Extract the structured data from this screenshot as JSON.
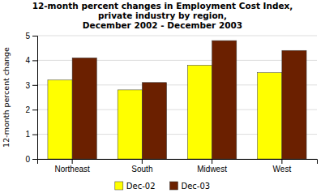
{
  "chart_data": {
    "type": "bar",
    "title": "12-month percent changes in Employment Cost Index,\nprivate industry by region,\nDecember 2002 - December 2003",
    "categories": [
      "Northeast",
      "South",
      "Midwest",
      "West"
    ],
    "series": [
      {
        "name": "Dec-02",
        "color": "#FFFF00",
        "values": [
          3.2,
          2.8,
          3.8,
          3.5
        ]
      },
      {
        "name": "Dec-03",
        "color": "#6B2000",
        "values": [
          4.1,
          3.1,
          4.8,
          4.4
        ]
      }
    ],
    "ylabel": "12-month percent change",
    "ylim": [
      0,
      5
    ],
    "yticks": [
      0,
      1,
      2,
      3,
      4,
      5
    ],
    "grid": true,
    "legend": "bottom"
  }
}
